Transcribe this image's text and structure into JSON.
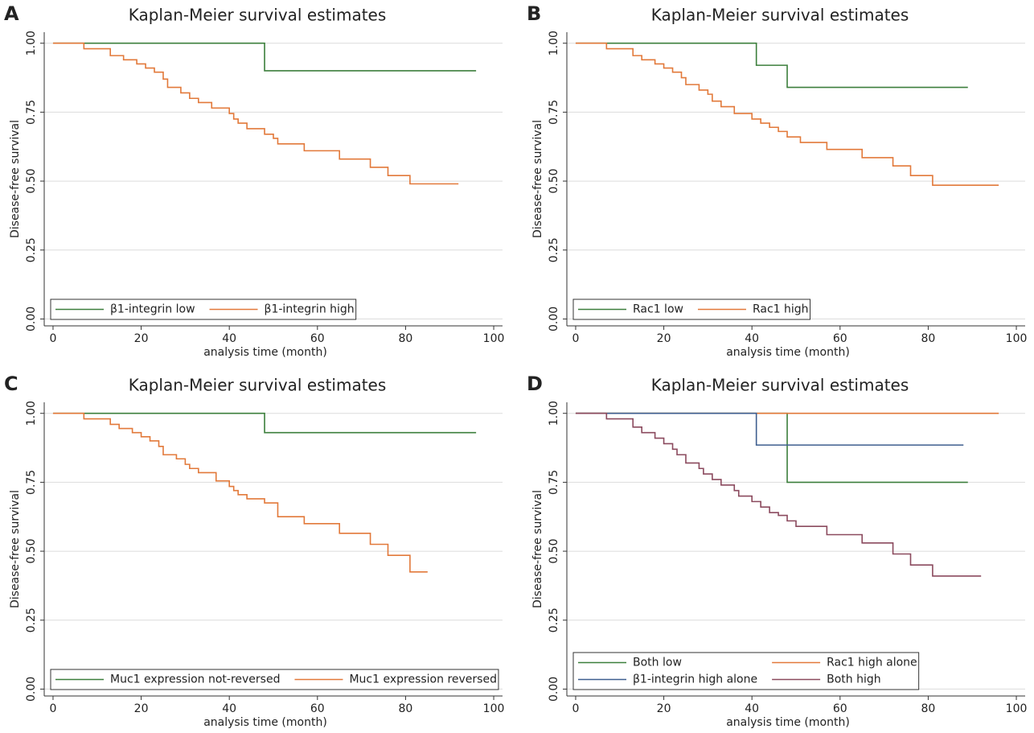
{
  "chart_data": [
    {
      "panel": "A",
      "type": "step",
      "title": "Kaplan-Meier survival estimates",
      "xlabel": "analysis time (month)",
      "ylabel": "Disease-free survival",
      "xlim": [
        -2,
        102
      ],
      "xticks": [
        0,
        20,
        40,
        60,
        80,
        100
      ],
      "ylim": [
        -0.025,
        1.04
      ],
      "yticks": [
        {
          "value": 0,
          "label": "0.00"
        },
        {
          "value": 0.25,
          "label": "0.25"
        },
        {
          "value": 0.5,
          "label": "0.50"
        },
        {
          "value": 0.75,
          "label": "0.75"
        },
        {
          "value": 1,
          "label": "1.00"
        }
      ],
      "grid": true,
      "legend": "bottom",
      "series": [
        {
          "name": "β1-integrin low",
          "color": "#3c7f3c",
          "x": [
            0,
            48,
            96
          ],
          "values": [
            1,
            0.9,
            0.9
          ]
        },
        {
          "name": "β1-integrin high",
          "color": "#e2793a",
          "x": [
            0,
            7,
            13,
            16,
            19,
            21,
            23,
            25,
            26,
            29,
            31,
            33,
            36,
            40,
            41,
            42,
            44,
            48,
            50,
            51,
            57,
            65,
            72,
            76,
            81,
            92
          ],
          "values": [
            1,
            0.98,
            0.955,
            0.94,
            0.925,
            0.91,
            0.895,
            0.87,
            0.84,
            0.82,
            0.8,
            0.785,
            0.765,
            0.745,
            0.725,
            0.71,
            0.69,
            0.67,
            0.655,
            0.635,
            0.61,
            0.58,
            0.55,
            0.52,
            0.49,
            0.49
          ]
        }
      ]
    },
    {
      "panel": "B",
      "type": "step",
      "title": "Kaplan-Meier survival estimates",
      "xlabel": "analysis time (month)",
      "ylabel": "Disease-free survival",
      "xlim": [
        -2,
        102
      ],
      "xticks": [
        0,
        20,
        40,
        60,
        80,
        100
      ],
      "ylim": [
        -0.025,
        1.04
      ],
      "yticks": [
        {
          "value": 0,
          "label": "0.00"
        },
        {
          "value": 0.25,
          "label": "0.25"
        },
        {
          "value": 0.5,
          "label": "0.50"
        },
        {
          "value": 0.75,
          "label": "0.75"
        },
        {
          "value": 1,
          "label": "1.00"
        }
      ],
      "grid": true,
      "legend": "bottom",
      "series": [
        {
          "name": "Rac1 low",
          "color": "#3c7f3c",
          "x": [
            0,
            41,
            48,
            89
          ],
          "values": [
            1,
            0.92,
            0.84,
            0.84
          ]
        },
        {
          "name": "Rac1 high",
          "color": "#e2793a",
          "x": [
            0,
            7,
            13,
            15,
            18,
            20,
            22,
            24,
            25,
            28,
            30,
            31,
            33,
            36,
            40,
            42,
            44,
            46,
            48,
            51,
            57,
            65,
            72,
            76,
            81,
            96
          ],
          "values": [
            1,
            0.98,
            0.955,
            0.94,
            0.925,
            0.91,
            0.895,
            0.875,
            0.85,
            0.83,
            0.815,
            0.79,
            0.77,
            0.745,
            0.725,
            0.71,
            0.695,
            0.68,
            0.66,
            0.64,
            0.615,
            0.585,
            0.555,
            0.52,
            0.485,
            0.485
          ]
        }
      ]
    },
    {
      "panel": "C",
      "type": "step",
      "title": "Kaplan-Meier survival estimates",
      "xlabel": "analysis time (month)",
      "ylabel": "Disease-free survival",
      "xlim": [
        -2,
        102
      ],
      "xticks": [
        0,
        20,
        40,
        60,
        80,
        100
      ],
      "ylim": [
        -0.025,
        1.04
      ],
      "yticks": [
        {
          "value": 0,
          "label": "0.00"
        },
        {
          "value": 0.25,
          "label": "0.25"
        },
        {
          "value": 0.5,
          "label": "0.50"
        },
        {
          "value": 0.75,
          "label": "0.75"
        },
        {
          "value": 1,
          "label": "1.00"
        }
      ],
      "grid": true,
      "legend": "bottom",
      "series": [
        {
          "name": "Muc1 expression not-reversed",
          "color": "#3c7f3c",
          "x": [
            0,
            48,
            96
          ],
          "values": [
            1,
            0.93,
            0.93
          ]
        },
        {
          "name": "Muc1 expression reversed",
          "color": "#e2793a",
          "x": [
            0,
            7,
            13,
            15,
            18,
            20,
            22,
            24,
            25,
            28,
            30,
            31,
            33,
            37,
            40,
            41,
            42,
            44,
            48,
            51,
            57,
            65,
            72,
            76,
            81,
            85
          ],
          "values": [
            1,
            0.98,
            0.96,
            0.945,
            0.93,
            0.915,
            0.9,
            0.88,
            0.85,
            0.835,
            0.815,
            0.8,
            0.785,
            0.755,
            0.735,
            0.72,
            0.705,
            0.69,
            0.675,
            0.625,
            0.6,
            0.565,
            0.525,
            0.485,
            0.425,
            0.425
          ]
        }
      ]
    },
    {
      "panel": "D",
      "type": "step",
      "title": "Kaplan-Meier survival estimates",
      "xlabel": "analysis time (month)",
      "ylabel": "Disease-free survival",
      "xlim": [
        -2,
        102
      ],
      "xticks": [
        0,
        20,
        40,
        60,
        80,
        100
      ],
      "ylim": [
        -0.025,
        1.04
      ],
      "yticks": [
        {
          "value": 0,
          "label": "0.00"
        },
        {
          "value": 0.25,
          "label": "0.25"
        },
        {
          "value": 0.5,
          "label": "0.50"
        },
        {
          "value": 0.75,
          "label": "0.75"
        },
        {
          "value": 1,
          "label": "1.00"
        }
      ],
      "grid": true,
      "legend": "bottom",
      "series": [
        {
          "name": "Both low",
          "color": "#3c7f3c",
          "x": [
            0,
            48,
            89
          ],
          "values": [
            1,
            0.75,
            0.75
          ]
        },
        {
          "name": "Rac1 high alone",
          "color": "#e2793a",
          "x": [
            0,
            96
          ],
          "values": [
            1,
            1
          ]
        },
        {
          "name": "β1-integrin high alone",
          "color": "#3f5f8f",
          "x": [
            0,
            41,
            88
          ],
          "values": [
            1,
            0.885,
            0.885
          ]
        },
        {
          "name": "Both high",
          "color": "#8b4a5e",
          "x": [
            0,
            7,
            13,
            15,
            18,
            20,
            22,
            23,
            25,
            28,
            29,
            31,
            33,
            36,
            37,
            40,
            42,
            44,
            46,
            48,
            50,
            57,
            65,
            72,
            76,
            81,
            92
          ],
          "values": [
            1,
            0.98,
            0.95,
            0.93,
            0.91,
            0.89,
            0.87,
            0.85,
            0.82,
            0.8,
            0.78,
            0.76,
            0.74,
            0.72,
            0.7,
            0.68,
            0.66,
            0.64,
            0.63,
            0.61,
            0.59,
            0.56,
            0.53,
            0.49,
            0.45,
            0.41,
            0.41
          ]
        }
      ]
    }
  ]
}
